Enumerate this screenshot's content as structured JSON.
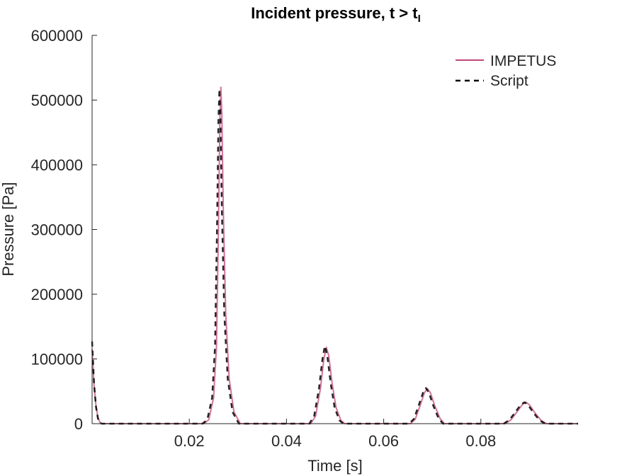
{
  "chart_data": {
    "type": "line",
    "title": "Incident pressure, t > t",
    "title_subscript": "I",
    "xlabel": "Time [s]",
    "ylabel": "Pressure [Pa]",
    "xlim": [
      0,
      0.1
    ],
    "ylim": [
      0,
      600000
    ],
    "xticks": [
      0.02,
      0.04,
      0.06,
      0.08
    ],
    "xtick_labels": [
      "0.02",
      "0.04",
      "0.06",
      "0.08"
    ],
    "yticks": [
      0,
      100000,
      200000,
      300000,
      400000,
      500000,
      600000
    ],
    "ytick_labels": [
      "0",
      "100000",
      "200000",
      "300000",
      "400000",
      "500000",
      "600000"
    ],
    "grid": false,
    "legend_position": "top-right",
    "series": [
      {
        "name": "IMPETUS",
        "style": "solid",
        "color": "#c2457a",
        "points": [
          [
            0.0,
            115000
          ],
          [
            0.0004,
            60000
          ],
          [
            0.0008,
            28000
          ],
          [
            0.0012,
            10000
          ],
          [
            0.0016,
            2000
          ],
          [
            0.002,
            0
          ],
          [
            0.023,
            0
          ],
          [
            0.024,
            6000
          ],
          [
            0.025,
            40000
          ],
          [
            0.0256,
            120000
          ],
          [
            0.026,
            300000
          ],
          [
            0.0263,
            470000
          ],
          [
            0.0265,
            520000
          ],
          [
            0.0267,
            480000
          ],
          [
            0.027,
            330000
          ],
          [
            0.0275,
            170000
          ],
          [
            0.0282,
            70000
          ],
          [
            0.0292,
            18000
          ],
          [
            0.0305,
            0
          ],
          [
            0.045,
            0
          ],
          [
            0.046,
            12000
          ],
          [
            0.047,
            55000
          ],
          [
            0.0477,
            100000
          ],
          [
            0.0482,
            118000
          ],
          [
            0.0487,
            105000
          ],
          [
            0.0494,
            62000
          ],
          [
            0.0502,
            25000
          ],
          [
            0.0512,
            5000
          ],
          [
            0.052,
            0
          ],
          [
            0.0655,
            0
          ],
          [
            0.0665,
            7000
          ],
          [
            0.0675,
            28000
          ],
          [
            0.0684,
            48000
          ],
          [
            0.069,
            54000
          ],
          [
            0.0696,
            48000
          ],
          [
            0.0705,
            28000
          ],
          [
            0.0716,
            8000
          ],
          [
            0.0725,
            0
          ],
          [
            0.085,
            0
          ],
          [
            0.0862,
            6000
          ],
          [
            0.0875,
            19000
          ],
          [
            0.0886,
            30000
          ],
          [
            0.0893,
            33000
          ],
          [
            0.09,
            29000
          ],
          [
            0.0911,
            17000
          ],
          [
            0.0924,
            5000
          ],
          [
            0.0935,
            0
          ],
          [
            0.1,
            0
          ]
        ]
      },
      {
        "name": "Script",
        "style": "dashed",
        "color": "#000000",
        "points": [
          [
            0.0,
            127000
          ],
          [
            0.0004,
            62000
          ],
          [
            0.0008,
            26000
          ],
          [
            0.0012,
            8000
          ],
          [
            0.0016,
            1000
          ],
          [
            0.002,
            0
          ],
          [
            0.0227,
            0
          ],
          [
            0.0237,
            6000
          ],
          [
            0.0247,
            40000
          ],
          [
            0.0253,
            120000
          ],
          [
            0.0257,
            300000
          ],
          [
            0.026,
            470000
          ],
          [
            0.0262,
            517000
          ],
          [
            0.0264,
            480000
          ],
          [
            0.0267,
            330000
          ],
          [
            0.0272,
            170000
          ],
          [
            0.0279,
            70000
          ],
          [
            0.0289,
            18000
          ],
          [
            0.0302,
            0
          ],
          [
            0.0447,
            0
          ],
          [
            0.0457,
            12000
          ],
          [
            0.0467,
            55000
          ],
          [
            0.0474,
            100000
          ],
          [
            0.0479,
            120000
          ],
          [
            0.0484,
            105000
          ],
          [
            0.0491,
            62000
          ],
          [
            0.0499,
            25000
          ],
          [
            0.0509,
            5000
          ],
          [
            0.0517,
            0
          ],
          [
            0.0652,
            0
          ],
          [
            0.0662,
            7000
          ],
          [
            0.0672,
            28000
          ],
          [
            0.0681,
            48000
          ],
          [
            0.0687,
            55000
          ],
          [
            0.0693,
            48000
          ],
          [
            0.0702,
            28000
          ],
          [
            0.0713,
            8000
          ],
          [
            0.0722,
            0
          ],
          [
            0.0847,
            0
          ],
          [
            0.0859,
            6000
          ],
          [
            0.0872,
            19000
          ],
          [
            0.0883,
            30000
          ],
          [
            0.089,
            33000
          ],
          [
            0.0897,
            29000
          ],
          [
            0.0908,
            17000
          ],
          [
            0.0921,
            5000
          ],
          [
            0.0932,
            0
          ],
          [
            0.1,
            0
          ]
        ]
      }
    ]
  }
}
